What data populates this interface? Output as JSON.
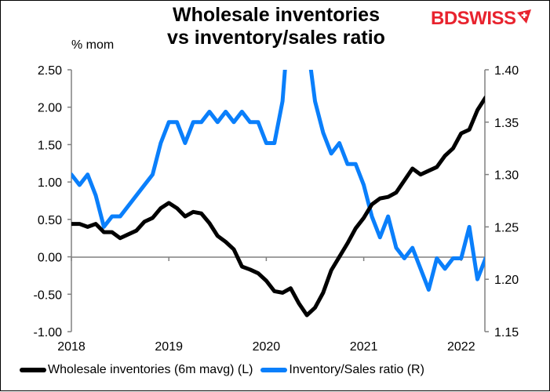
{
  "header": {
    "title_line1": "Wholesale inventories",
    "title_line2": "vs inventory/sales ratio",
    "left_unit": "% mom",
    "logo_text": "BDSWISS"
  },
  "colors": {
    "wholesale": "#000000",
    "ratio": "#0a7ffb",
    "axis": "#808080",
    "logo": "#e8232e"
  },
  "legend": [
    {
      "label": "Wholesale inventories (6m mavg) (L)",
      "color": "#000000"
    },
    {
      "label": "Inventory/Sales ratio (R)",
      "color": "#0a7ffb"
    }
  ],
  "chart_data": {
    "type": "line",
    "title": "Wholesale inventories vs inventory/sales ratio",
    "xlabel": "",
    "ylabel": "% mom",
    "ylabel_right": "",
    "x_tick_labels": [
      "2018",
      "2019",
      "2020",
      "2021",
      "2022"
    ],
    "y_left_ticks": [
      "2.50",
      "2.00",
      "1.50",
      "1.00",
      "0.50",
      "0.00",
      "-0.50",
      "-1.00"
    ],
    "y_right_ticks": [
      "1.40",
      "1.35",
      "1.30",
      "1.25",
      "1.20",
      "1.15"
    ],
    "ylim_left": [
      -1.0,
      2.5
    ],
    "ylim_right": [
      1.15,
      1.4
    ],
    "grid": false,
    "legend_position": "bottom",
    "x_start": "2018-01",
    "x_frequency": "monthly",
    "series": [
      {
        "name": "Wholesale inventories (6m mavg) (L)",
        "axis": "left",
        "values": [
          0.44,
          0.44,
          0.4,
          0.44,
          0.33,
          0.33,
          0.25,
          0.3,
          0.35,
          0.47,
          0.52,
          0.65,
          0.72,
          0.65,
          0.54,
          0.6,
          0.58,
          0.45,
          0.28,
          0.2,
          0.1,
          -0.13,
          -0.17,
          -0.22,
          -0.32,
          -0.46,
          -0.48,
          -0.42,
          -0.62,
          -0.78,
          -0.68,
          -0.48,
          -0.18,
          0.0,
          0.18,
          0.38,
          0.52,
          0.7,
          0.78,
          0.8,
          0.86,
          1.02,
          1.18,
          1.1,
          1.15,
          1.2,
          1.35,
          1.45,
          1.65,
          1.7,
          1.96,
          2.13
        ]
      },
      {
        "name": "Inventory/Sales ratio (R)",
        "axis": "right",
        "values": [
          1.3,
          1.29,
          1.3,
          1.28,
          1.25,
          1.26,
          1.26,
          1.27,
          1.28,
          1.29,
          1.3,
          1.33,
          1.35,
          1.35,
          1.33,
          1.35,
          1.35,
          1.36,
          1.35,
          1.36,
          1.35,
          1.36,
          1.35,
          1.35,
          1.33,
          1.33,
          1.37,
          1.47,
          1.49,
          1.43,
          1.37,
          1.34,
          1.32,
          1.33,
          1.31,
          1.31,
          1.29,
          1.26,
          1.24,
          1.26,
          1.23,
          1.22,
          1.23,
          1.21,
          1.19,
          1.22,
          1.21,
          1.22,
          1.22,
          1.25,
          1.2,
          1.22
        ]
      }
    ]
  }
}
